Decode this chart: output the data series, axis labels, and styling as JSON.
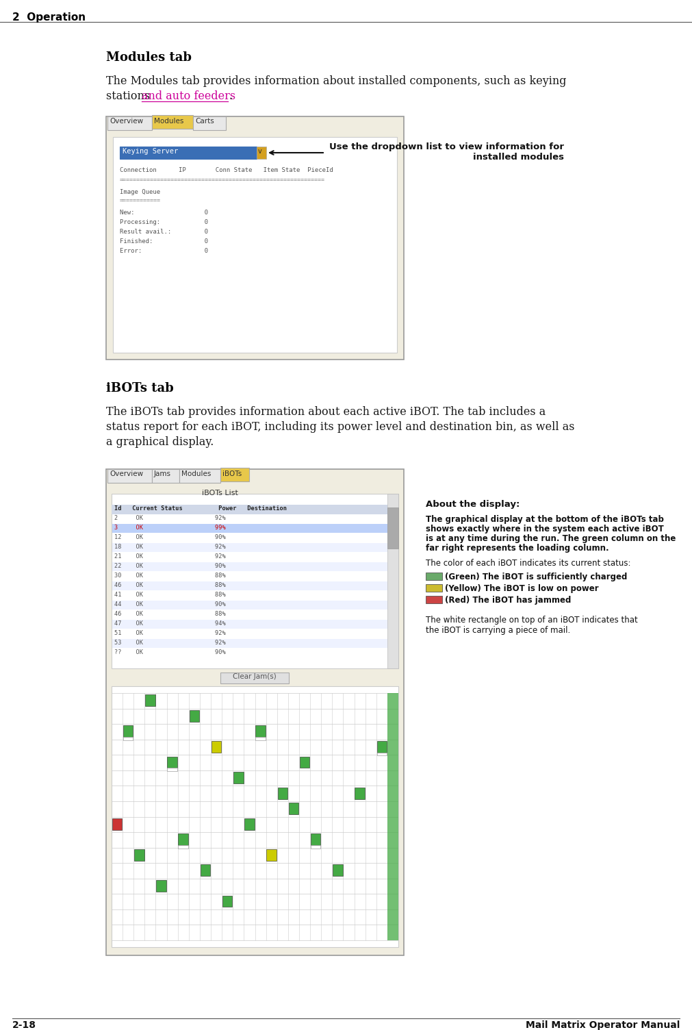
{
  "page_title": "2  Operation",
  "footer_left": "2-18",
  "footer_right": "Mail Matrix Operator Manual",
  "section1_title": "Modules tab",
  "section1_link": "and auto feeders",
  "section1_period": ".",
  "callout_text": "Use the dropdown list to view information for\ninstalled modules",
  "section2_title": "iBOTs tab",
  "about_title": "About the display:",
  "about_line1": "The graphical display at the bottom of the iBOTs tab",
  "about_line2": "shows exactly where in the system each active iBOT",
  "about_line3": "is at any time during the run. The green column on the",
  "about_line4": "far right represents the loading column.",
  "about_line5": "The color of each iBOT indicates its current status:",
  "legend1": "(Green) The iBOT is sufficiently charged",
  "legend2": "(Yellow) The iBOT is low on power",
  "legend3": "(Red) The iBOT has jammed",
  "about_line6": "The white rectangle on top of an iBOT indicates that",
  "about_line7": "the iBOT is carrying a piece of mail.",
  "bg_color": "#ffffff",
  "text_color": "#1a1a1a",
  "link_color": "#cc0099",
  "title_color": "#000000",
  "screen_bg": "#f0ede0",
  "tab_active_bg": "#e8c84a",
  "dropdown_bg": "#3a6eb5",
  "ibot_green_legend": "#6aaa6a",
  "ibot_yellow_legend": "#ccbb30",
  "ibot_red_legend": "#cc4444"
}
